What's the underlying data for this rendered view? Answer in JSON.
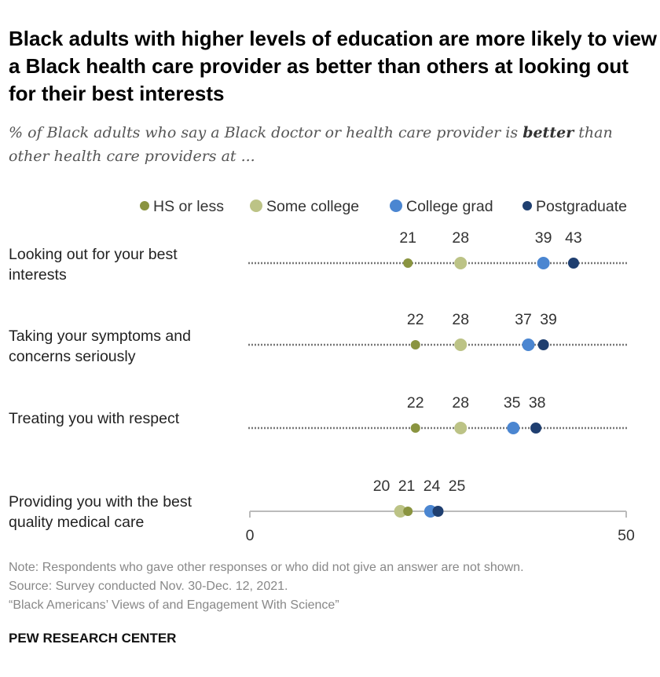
{
  "title": "Black adults with higher levels of education are more likely to view a Black health care provider as better than others at looking out for their best interests",
  "subtitle_pre": "% of Black adults who say a Black doctor or health care provider is ",
  "subtitle_bold": "better",
  "subtitle_post": " than other health care providers at ...",
  "chart_data": {
    "type": "dot",
    "xlim": [
      0,
      50
    ],
    "xticks": [
      "0",
      "50"
    ],
    "legend_position": "top",
    "series": [
      {
        "name": "HS or less",
        "color": "#8a9440",
        "values": [
          21,
          22,
          22,
          21
        ]
      },
      {
        "name": "Some college",
        "color": "#bcc386",
        "values": [
          28,
          28,
          28,
          20
        ]
      },
      {
        "name": "College grad",
        "color": "#4b86d1",
        "values": [
          39,
          37,
          35,
          24
        ]
      },
      {
        "name": "Postgraduate",
        "color": "#1f3f70",
        "values": [
          43,
          39,
          38,
          25
        ]
      }
    ],
    "categories": [
      "Looking out for your best interests",
      "Taking your symptoms and concerns seriously",
      "Treating you with respect",
      "Providing you with the best quality medical care"
    ]
  },
  "row_labels": [
    [
      "Looking out for your best",
      "interests"
    ],
    [
      "Taking your symptoms and",
      "concerns seriously"
    ],
    [
      "Treating you with respect",
      ""
    ],
    [
      "Providing you with the best",
      "quality medical care"
    ]
  ],
  "notes": [
    "Note: Respondents who gave other responses or who did not give an answer are not shown.",
    "Source: Survey conducted Nov. 30-Dec. 12, 2021.",
    "“Black Americans’ Views of and Engagement With Science”"
  ],
  "brand": "PEW RESEARCH CENTER"
}
